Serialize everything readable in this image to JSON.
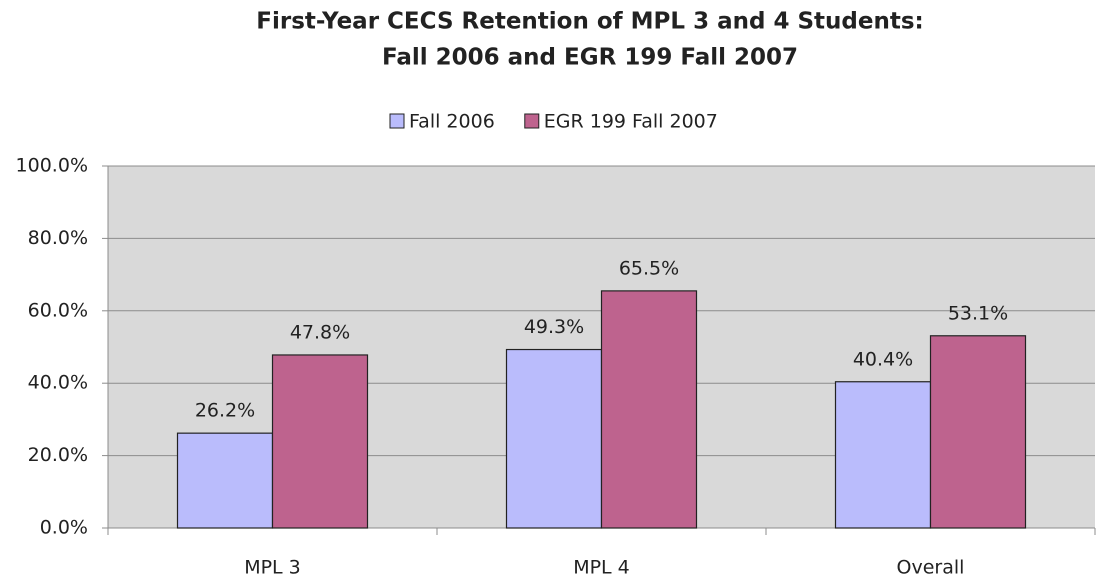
{
  "chart_data": {
    "type": "bar",
    "title": [
      "First-Year CECS Retention of MPL 3 and 4 Students:",
      "Fall 2006 and EGR 199 Fall 2007"
    ],
    "categories": [
      "MPL 3",
      "MPL 4",
      "Overall"
    ],
    "series": [
      {
        "name": "Fall 2006",
        "color": "#babcfc",
        "values": [
          26.2,
          49.3,
          40.4
        ],
        "value_labels": [
          "26.2%",
          "49.3%",
          "40.4%"
        ]
      },
      {
        "name": "EGR 199 Fall 2007",
        "color": "#be638e",
        "values": [
          47.8,
          65.5,
          53.1
        ],
        "value_labels": [
          "47.8%",
          "65.5%",
          "53.1%"
        ]
      }
    ],
    "ylim": [
      0,
      100
    ],
    "yticks": [
      {
        "value": 0,
        "label": "0.0%"
      },
      {
        "value": 20,
        "label": "20.0%"
      },
      {
        "value": 40,
        "label": "40.0%"
      },
      {
        "value": 60,
        "label": "60.0%"
      },
      {
        "value": 80,
        "label": "80.0%"
      },
      {
        "value": 100,
        "label": "100.0%"
      }
    ],
    "grid": true,
    "legend": "top"
  }
}
